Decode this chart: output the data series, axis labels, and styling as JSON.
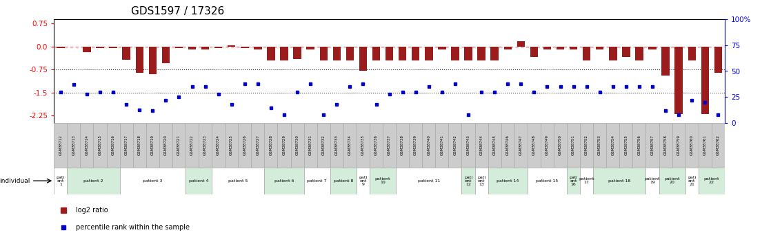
{
  "title": "GDS1597 / 17326",
  "samples": [
    "GSM38712",
    "GSM38713",
    "GSM38714",
    "GSM38715",
    "GSM38716",
    "GSM38717",
    "GSM38718",
    "GSM38719",
    "GSM38720",
    "GSM38721",
    "GSM38722",
    "GSM38723",
    "GSM38724",
    "GSM38725",
    "GSM38726",
    "GSM38727",
    "GSM38728",
    "GSM38729",
    "GSM38730",
    "GSM38731",
    "GSM38732",
    "GSM38733",
    "GSM38734",
    "GSM38735",
    "GSM38736",
    "GSM38737",
    "GSM38738",
    "GSM38739",
    "GSM38740",
    "GSM38741",
    "GSM38742",
    "GSM38743",
    "GSM38744",
    "GSM38745",
    "GSM38746",
    "GSM38747",
    "GSM38748",
    "GSM38749",
    "GSM38750",
    "GSM38751",
    "GSM38752",
    "GSM38753",
    "GSM38754",
    "GSM38755",
    "GSM38756",
    "GSM38757",
    "GSM38758",
    "GSM38759",
    "GSM38760",
    "GSM38761",
    "GSM38762"
  ],
  "log2_ratio": [
    -0.05,
    0.0,
    -0.18,
    -0.05,
    -0.05,
    -0.42,
    -0.85,
    -0.9,
    -0.55,
    -0.05,
    -0.1,
    -0.1,
    -0.05,
    0.05,
    -0.05,
    -0.1,
    -0.45,
    -0.45,
    -0.4,
    -0.1,
    -0.45,
    -0.45,
    -0.45,
    -0.8,
    -0.45,
    -0.45,
    -0.45,
    -0.45,
    -0.45,
    -0.1,
    -0.45,
    -0.45,
    -0.45,
    -0.45,
    -0.1,
    0.18,
    -0.35,
    -0.1,
    -0.1,
    -0.1,
    -0.45,
    -0.1,
    -0.45,
    -0.35,
    -0.45,
    -0.1,
    -0.95,
    -2.2,
    -0.45,
    -2.2,
    -0.85
  ],
  "percentile": [
    30,
    37,
    28,
    30,
    30,
    18,
    13,
    12,
    22,
    25,
    35,
    35,
    28,
    18,
    38,
    38,
    15,
    8,
    30,
    38,
    8,
    18,
    35,
    38,
    18,
    28,
    30,
    30,
    35,
    30,
    38,
    8,
    30,
    30,
    38,
    38,
    30,
    35,
    35,
    35,
    35,
    30,
    35,
    35,
    35,
    35,
    12,
    8,
    22,
    20,
    8
  ],
  "patients": [
    {
      "label": "pati\nent\n1",
      "start": 0,
      "end": 1,
      "color": "#ffffff"
    },
    {
      "label": "patient 2",
      "start": 1,
      "end": 5,
      "color": "#d4edda"
    },
    {
      "label": "patient 3",
      "start": 5,
      "end": 10,
      "color": "#ffffff"
    },
    {
      "label": "patient 4",
      "start": 10,
      "end": 12,
      "color": "#d4edda"
    },
    {
      "label": "patient 5",
      "start": 12,
      "end": 16,
      "color": "#ffffff"
    },
    {
      "label": "patient 6",
      "start": 16,
      "end": 19,
      "color": "#d4edda"
    },
    {
      "label": "patient 7",
      "start": 19,
      "end": 21,
      "color": "#ffffff"
    },
    {
      "label": "patient 8",
      "start": 21,
      "end": 23,
      "color": "#d4edda"
    },
    {
      "label": "pati\nent\n9",
      "start": 23,
      "end": 24,
      "color": "#ffffff"
    },
    {
      "label": "patient\n10",
      "start": 24,
      "end": 26,
      "color": "#d4edda"
    },
    {
      "label": "patient 11",
      "start": 26,
      "end": 31,
      "color": "#ffffff"
    },
    {
      "label": "pati\nent\n12",
      "start": 31,
      "end": 32,
      "color": "#d4edda"
    },
    {
      "label": "pati\nent\n13",
      "start": 32,
      "end": 33,
      "color": "#ffffff"
    },
    {
      "label": "patient 14",
      "start": 33,
      "end": 36,
      "color": "#d4edda"
    },
    {
      "label": "patient 15",
      "start": 36,
      "end": 39,
      "color": "#ffffff"
    },
    {
      "label": "pati\nent\n16",
      "start": 39,
      "end": 40,
      "color": "#d4edda"
    },
    {
      "label": "patient\n17",
      "start": 40,
      "end": 41,
      "color": "#ffffff"
    },
    {
      "label": "patient 18",
      "start": 41,
      "end": 45,
      "color": "#d4edda"
    },
    {
      "label": "patient\n19",
      "start": 45,
      "end": 46,
      "color": "#ffffff"
    },
    {
      "label": "patient\n20",
      "start": 46,
      "end": 48,
      "color": "#d4edda"
    },
    {
      "label": "pati\nent\n21",
      "start": 48,
      "end": 49,
      "color": "#ffffff"
    },
    {
      "label": "patient\n22",
      "start": 49,
      "end": 51,
      "color": "#d4edda"
    }
  ],
  "ylim": [
    -2.5,
    0.9
  ],
  "yticks_left": [
    0.75,
    0.0,
    -0.75,
    -1.5,
    -2.25
  ],
  "yticks_right_pct": [
    100,
    75,
    50,
    25,
    0
  ],
  "hlines_dotted": [
    -0.75,
    -1.5
  ],
  "hline_dashed": 0.0,
  "bar_color": "#9b1c1c",
  "dot_color": "#0000cc",
  "title_fontsize": 11,
  "tick_fontsize": 7.5,
  "legend_bar_label": "log2 ratio",
  "legend_dot_label": "percentile rank within the sample",
  "individual_label": "individual"
}
